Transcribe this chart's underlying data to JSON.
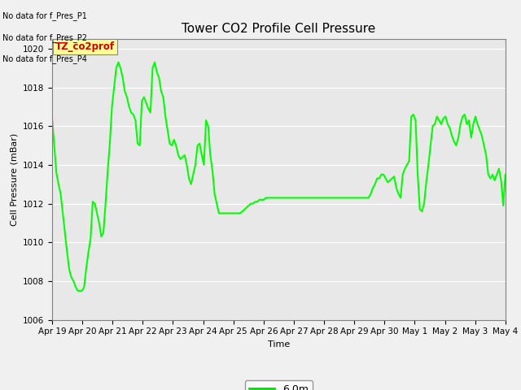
{
  "title": "Tower CO2 Profile Cell Pressure",
  "xlabel": "Time",
  "ylabel": "Cell Pressure (mBar)",
  "ylim": [
    1006,
    1020.5
  ],
  "fig_bg_color": "#f0f0f0",
  "plot_bg_color": "#e8e8e8",
  "line_color": "#00ff00",
  "line_width": 1.5,
  "legend_label": "6.0m",
  "legend_color": "#00dd00",
  "no_data_texts": [
    "No data for f_Pres_P1",
    "No data for f_Pres_P2",
    "No data for f_Pres_P4"
  ],
  "tz_label": "TZ_co2prof",
  "tz_label_color": "#cc0000",
  "tz_label_bg": "#ffff99",
  "x_tick_labels": [
    "Apr 19",
    "Apr 20",
    "Apr 21",
    "Apr 22",
    "Apr 23",
    "Apr 24",
    "Apr 25",
    "Apr 26",
    "Apr 27",
    "Apr 28",
    "Apr 29",
    "Apr 30",
    "May 1",
    "May 2",
    "May 3",
    "May 4"
  ],
  "y_values": [
    1016.4,
    1015.0,
    1013.6,
    1013.0,
    1012.5,
    1011.5,
    1010.5,
    1009.5,
    1008.6,
    1008.2,
    1008.0,
    1007.7,
    1007.5,
    1007.5,
    1007.5,
    1007.7,
    1008.7,
    1009.5,
    1010.2,
    1012.1,
    1012.0,
    1011.5,
    1011.0,
    1010.3,
    1010.5,
    1012.0,
    1013.7,
    1015.1,
    1017.0,
    1018.0,
    1019.0,
    1019.3,
    1019.0,
    1018.5,
    1017.8,
    1017.5,
    1017.0,
    1016.7,
    1016.6,
    1016.3,
    1015.1,
    1015.0,
    1017.3,
    1017.5,
    1017.2,
    1016.9,
    1016.7,
    1019.0,
    1019.3,
    1018.8,
    1018.5,
    1017.8,
    1017.5,
    1016.5,
    1015.8,
    1015.1,
    1015.0,
    1015.3,
    1015.0,
    1014.5,
    1014.3,
    1014.4,
    1014.5,
    1014.0,
    1013.3,
    1013.0,
    1013.5,
    1014.0,
    1015.0,
    1015.1,
    1014.5,
    1014.0,
    1016.3,
    1016.0,
    1014.5,
    1013.7,
    1012.5,
    1012.0,
    1011.5,
    1011.5,
    1011.5,
    1011.5,
    1011.5,
    1011.5,
    1011.5,
    1011.5,
    1011.5,
    1011.5,
    1011.5,
    1011.6,
    1011.7,
    1011.8,
    1011.9,
    1012.0,
    1012.0,
    1012.1,
    1012.1,
    1012.2,
    1012.2,
    1012.2,
    1012.3,
    1012.3,
    1012.3,
    1012.3,
    1012.3,
    1012.3,
    1012.3,
    1012.3,
    1012.3,
    1012.3,
    1012.3,
    1012.3,
    1012.3,
    1012.3,
    1012.3,
    1012.3,
    1012.3,
    1012.3,
    1012.3,
    1012.3,
    1012.3,
    1012.3,
    1012.3,
    1012.3,
    1012.3,
    1012.3,
    1012.3,
    1012.3,
    1012.3,
    1012.3,
    1012.3,
    1012.3,
    1012.3,
    1012.3,
    1012.3,
    1012.3,
    1012.3,
    1012.3,
    1012.3,
    1012.3,
    1012.3,
    1012.3,
    1012.3,
    1012.3,
    1012.3,
    1012.3,
    1012.3,
    1012.3,
    1012.3,
    1012.5,
    1012.8,
    1013.0,
    1013.3,
    1013.3,
    1013.5,
    1013.5,
    1013.3,
    1013.1,
    1013.2,
    1013.3,
    1013.4,
    1012.8,
    1012.5,
    1012.3,
    1013.5,
    1013.8,
    1014.0,
    1014.2,
    1016.5,
    1016.6,
    1016.3,
    1013.5,
    1011.7,
    1011.6,
    1012.0,
    1013.1,
    1014.0,
    1015.0,
    1016.0,
    1016.1,
    1016.5,
    1016.3,
    1016.1,
    1016.4,
    1016.5,
    1016.1,
    1015.9,
    1015.5,
    1015.2,
    1015.0,
    1015.4,
    1016.1,
    1016.5,
    1016.6,
    1016.1,
    1016.3,
    1015.4,
    1016.1,
    1016.5,
    1016.1,
    1015.8,
    1015.5,
    1015.0,
    1014.5,
    1013.5,
    1013.3,
    1013.5,
    1013.2,
    1013.5,
    1013.8,
    1013.2,
    1011.9,
    1013.5
  ],
  "yticks": [
    1006,
    1008,
    1010,
    1012,
    1014,
    1016,
    1018,
    1020
  ],
  "grid_color": "#ffffff",
  "title_fontsize": 11,
  "label_fontsize": 8,
  "tick_fontsize": 7.5
}
